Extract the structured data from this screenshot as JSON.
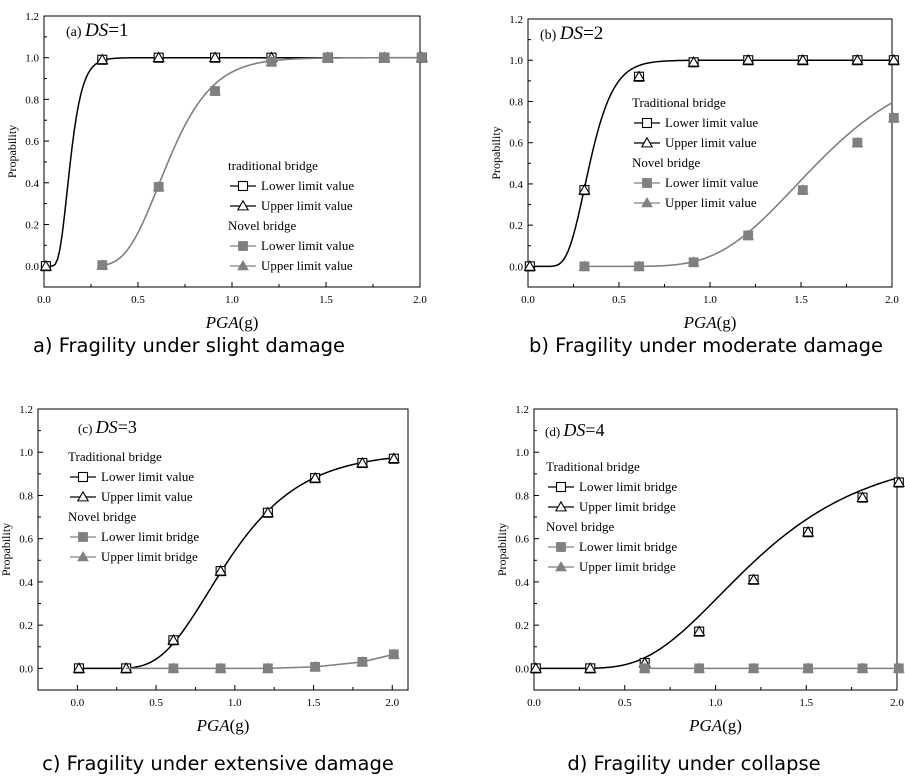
{
  "chart_data": [
    {
      "type": "line",
      "panel_label": "(a)",
      "ds_label": "DS",
      "ds_value": "=1",
      "xlabel_var": "PGA",
      "xlabel_unit": "(g)",
      "ylabel": "Propability",
      "caption": "a) Fragility under slight damage",
      "xlim": [
        0,
        2.0
      ],
      "ylim": [
        -0.1,
        1.2
      ],
      "xticks": [
        "0.0",
        "0.5",
        "1.0",
        "1.5",
        "2.0"
      ],
      "yticks": [
        "0.0",
        "0.2",
        "0.4",
        "0.6",
        "0.8",
        "1.0",
        "1.2"
      ],
      "legend": {
        "group1": "traditional bridge",
        "group1_items": [
          "Lower limit value",
          "Upper limit value"
        ],
        "group2": "Novel bridge",
        "group2_items": [
          "Lower limit value",
          "Upper limit value"
        ]
      },
      "series": [
        {
          "group": "traditional",
          "markers": "open",
          "curve": {
            "median": 0.14,
            "beta": 0.36
          },
          "points": {
            "x": [
              0.01,
              0.31,
              0.61,
              0.91,
              1.21,
              1.51,
              1.81,
              2.01
            ],
            "y": [
              0.0,
              0.99,
              1.0,
              1.0,
              1.0,
              1.0,
              1.0,
              1.0
            ]
          }
        },
        {
          "group": "novel",
          "markers": "filled",
          "curve": {
            "median": 0.66,
            "beta": 0.28
          },
          "points": {
            "x": [
              0.31,
              0.61,
              0.91,
              1.21,
              1.51,
              1.81,
              2.01
            ],
            "y": [
              0.005,
              0.38,
              0.84,
              0.98,
              1.0,
              1.0,
              1.0
            ]
          }
        }
      ]
    },
    {
      "type": "line",
      "panel_label": "(b)",
      "ds_label": "DS",
      "ds_value": "=2",
      "xlabel_var": "PGA",
      "xlabel_unit": "(g)",
      "ylabel": "Propability",
      "caption": "b) Fragility under moderate damage",
      "xlim": [
        0,
        2.0
      ],
      "ylim": [
        -0.1,
        1.2
      ],
      "xticks": [
        "0.0",
        "0.5",
        "1.0",
        "1.5",
        "2.0"
      ],
      "yticks": [
        "0.0",
        "0.2",
        "0.4",
        "0.6",
        "0.8",
        "1.0",
        "1.2"
      ],
      "legend": {
        "group1": "Traditional bridge",
        "group1_items": [
          "Lower limit value",
          "Upper limit value"
        ],
        "group2": "Novel bridge",
        "group2_items": [
          "Lower limit value",
          "Upper limit value"
        ]
      },
      "series": [
        {
          "group": "traditional",
          "markers": "open",
          "curve": {
            "median": 0.34,
            "beta": 0.3
          },
          "points": {
            "x": [
              0.01,
              0.31,
              0.61,
              0.91,
              1.21,
              1.51,
              1.81,
              2.01
            ],
            "y": [
              0.0,
              0.37,
              0.92,
              0.99,
              1.0,
              1.0,
              1.0,
              1.0
            ]
          }
        },
        {
          "group": "novel",
          "markers": "filled",
          "curve": {
            "median": 1.59,
            "beta": 0.28
          },
          "points": {
            "x": [
              0.31,
              0.61,
              0.91,
              1.21,
              1.51,
              1.81,
              2.01
            ],
            "y": [
              0.0,
              0.0,
              0.02,
              0.15,
              0.37,
              0.6,
              0.72
            ]
          }
        }
      ]
    },
    {
      "type": "line",
      "panel_label": "(c)",
      "ds_label": "DS",
      "ds_value": "=3",
      "xlabel_var": "PGA",
      "xlabel_unit": "(g)",
      "ylabel": "Propability",
      "caption": "c) Fragility under extensive damage",
      "xlim": [
        -0.25,
        2.1
      ],
      "ylim": [
        -0.1,
        1.2
      ],
      "xticks": [
        "0.0",
        "0.5",
        "1.0",
        "1.5",
        "2.0"
      ],
      "yticks": [
        "0.0",
        "0.2",
        "0.4",
        "0.6",
        "0.8",
        "1.0",
        "1.2"
      ],
      "legend": {
        "group1": "Traditional bridge",
        "group1_items": [
          "Lower limit value",
          "Upper limit value"
        ],
        "group2": "Novel bridge",
        "group2_items": [
          "Lower limit bridge",
          "Upper limit bridge"
        ]
      },
      "series": [
        {
          "group": "traditional",
          "markers": "open",
          "curve": {
            "median": 0.96,
            "beta": 0.38
          },
          "points": {
            "x": [
              0.01,
              0.31,
              0.61,
              0.91,
              1.21,
              1.51,
              1.81,
              2.01
            ],
            "y": [
              0.0,
              0.0,
              0.13,
              0.45,
              0.72,
              0.88,
              0.95,
              0.97
            ]
          }
        },
        {
          "group": "novel",
          "markers": "filled",
          "line": {
            "x": [
              0.31,
              0.61,
              0.91,
              1.21,
              1.51,
              1.81,
              2.01
            ],
            "y": [
              0.0,
              0.0,
              0.0,
              0.0,
              0.007,
              0.03,
              0.065
            ]
          },
          "points": {
            "x": [
              0.61,
              0.91,
              1.21,
              1.51,
              1.81,
              2.01
            ],
            "y": [
              0.0,
              0.0,
              0.0,
              0.007,
              0.03,
              0.065
            ]
          }
        }
      ]
    },
    {
      "type": "line",
      "panel_label": "(d)",
      "ds_label": "DS",
      "ds_value": "=4",
      "xlabel_var": "PGA",
      "xlabel_unit": "(g)",
      "ylabel": "Propability",
      "caption": "d) Fragility under collapse",
      "xlim": [
        0,
        2.0
      ],
      "ylim": [
        -0.1,
        1.2
      ],
      "xticks": [
        "0.0",
        "0.5",
        "1.0",
        "1.5",
        "2.0"
      ],
      "yticks": [
        "0.0",
        "0.2",
        "0.4",
        "0.6",
        "0.8",
        "1.0",
        "1.2"
      ],
      "legend": {
        "group1": "Traditional bridge",
        "group1_items": [
          "Lower limit bridge",
          "Upper limit bridge"
        ],
        "group2": "Novel bridge",
        "group2_items": [
          "Lower limit bridge",
          "Upper limit bridge"
        ]
      },
      "series": [
        {
          "group": "traditional",
          "markers": "open",
          "curve": {
            "median": 1.22,
            "beta": 0.42
          },
          "points": {
            "x": [
              0.01,
              0.31,
              0.61,
              0.91,
              1.21,
              1.51,
              1.81,
              2.01
            ],
            "y": [
              0.0,
              0.0,
              0.025,
              0.17,
              0.41,
              0.63,
              0.79,
              0.86
            ]
          }
        },
        {
          "group": "novel",
          "markers": "filled",
          "line": {
            "x": [
              0.61,
              2.01
            ],
            "y": [
              0.0,
              0.0
            ]
          },
          "points": {
            "x": [
              0.61,
              0.91,
              1.21,
              1.51,
              1.81,
              2.01
            ],
            "y": [
              0.0,
              0.0,
              0.0,
              0.0,
              0.0,
              0.0
            ]
          }
        }
      ]
    }
  ]
}
